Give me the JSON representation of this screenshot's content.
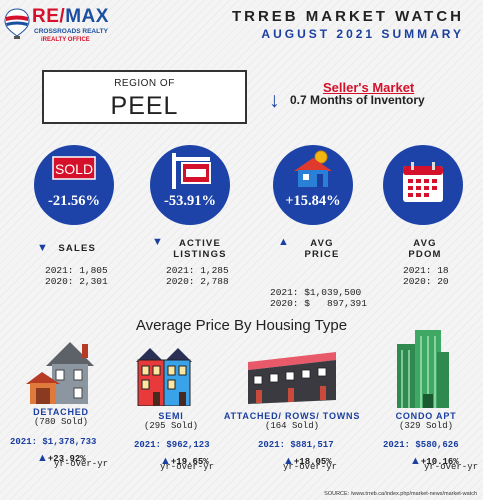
{
  "logo": {
    "brand_re": "RE",
    "brand_sep": "/",
    "brand_max": "MAX",
    "office_line1": "CROSSROADS REALTY",
    "office_line2": "iREALTY OFFICE"
  },
  "header": {
    "title": "TRREB MARKET WATCH",
    "subtitle": "AUGUST 2021 SUMMARY"
  },
  "region": {
    "label": "REGION OF",
    "name": "PEEL"
  },
  "market": {
    "type": "Seller's Market",
    "inventory": "0.7 Months of Inventory"
  },
  "stats": [
    {
      "pct": "-21.56%",
      "label_1": "SALES",
      "label_2": "",
      "direction": "down",
      "y2021": "2021: 1,805",
      "y2020": "2020: 2,301"
    },
    {
      "pct": "-53.91%",
      "label_1": "ACTIVE",
      "label_2": "LISTINGS",
      "direction": "down",
      "y2021": "2021: 1,285",
      "y2020": "2020: 2,788"
    },
    {
      "pct": "+15.84%",
      "label_1": "AVG",
      "label_2": "PRICE",
      "direction": "up",
      "y2021": "2021: $1,039,500",
      "y2020": "2020: $   897,391"
    },
    {
      "pct": "",
      "label_1": "AVG",
      "label_2": "PDOM",
      "direction": "",
      "y2021": "2021: 18",
      "y2020": "2020: 20"
    }
  ],
  "icons": {
    "sold_sign_text": "SOLD"
  },
  "section": {
    "title": "Average Price By Housing Type"
  },
  "housing": [
    {
      "name": "DETACHED",
      "sold": "(780 Sold)",
      "price": "2021: $1,378,733",
      "change": "+23.92%",
      "yoy": "yr-over-yr"
    },
    {
      "name": "SEMI",
      "sold": "(295 Sold)",
      "price": "2021: $962,123",
      "change": "+19.65%",
      "yoy": "yr-over-yr"
    },
    {
      "name": "ATTACHED/ ROWS/ TOWNS",
      "sold": "(164 Sold)",
      "price": "2021: $881,517",
      "change": "+18.05%",
      "yoy": "yr-over-yr"
    },
    {
      "name": "CONDO APT",
      "sold": "(329 Sold)",
      "price": "2021: $580,626",
      "change": "+10.16%",
      "yoy": "yr-over-yr"
    }
  ],
  "symbols": {
    "down": "▼",
    "up": "▲",
    "arrow_down": "↓"
  },
  "source": "SOURCE: /www.trreb.ca/index.php/market-news/market-watch",
  "colors": {
    "brand_blue": "#1d43a8",
    "brand_red": "#d5102b"
  }
}
